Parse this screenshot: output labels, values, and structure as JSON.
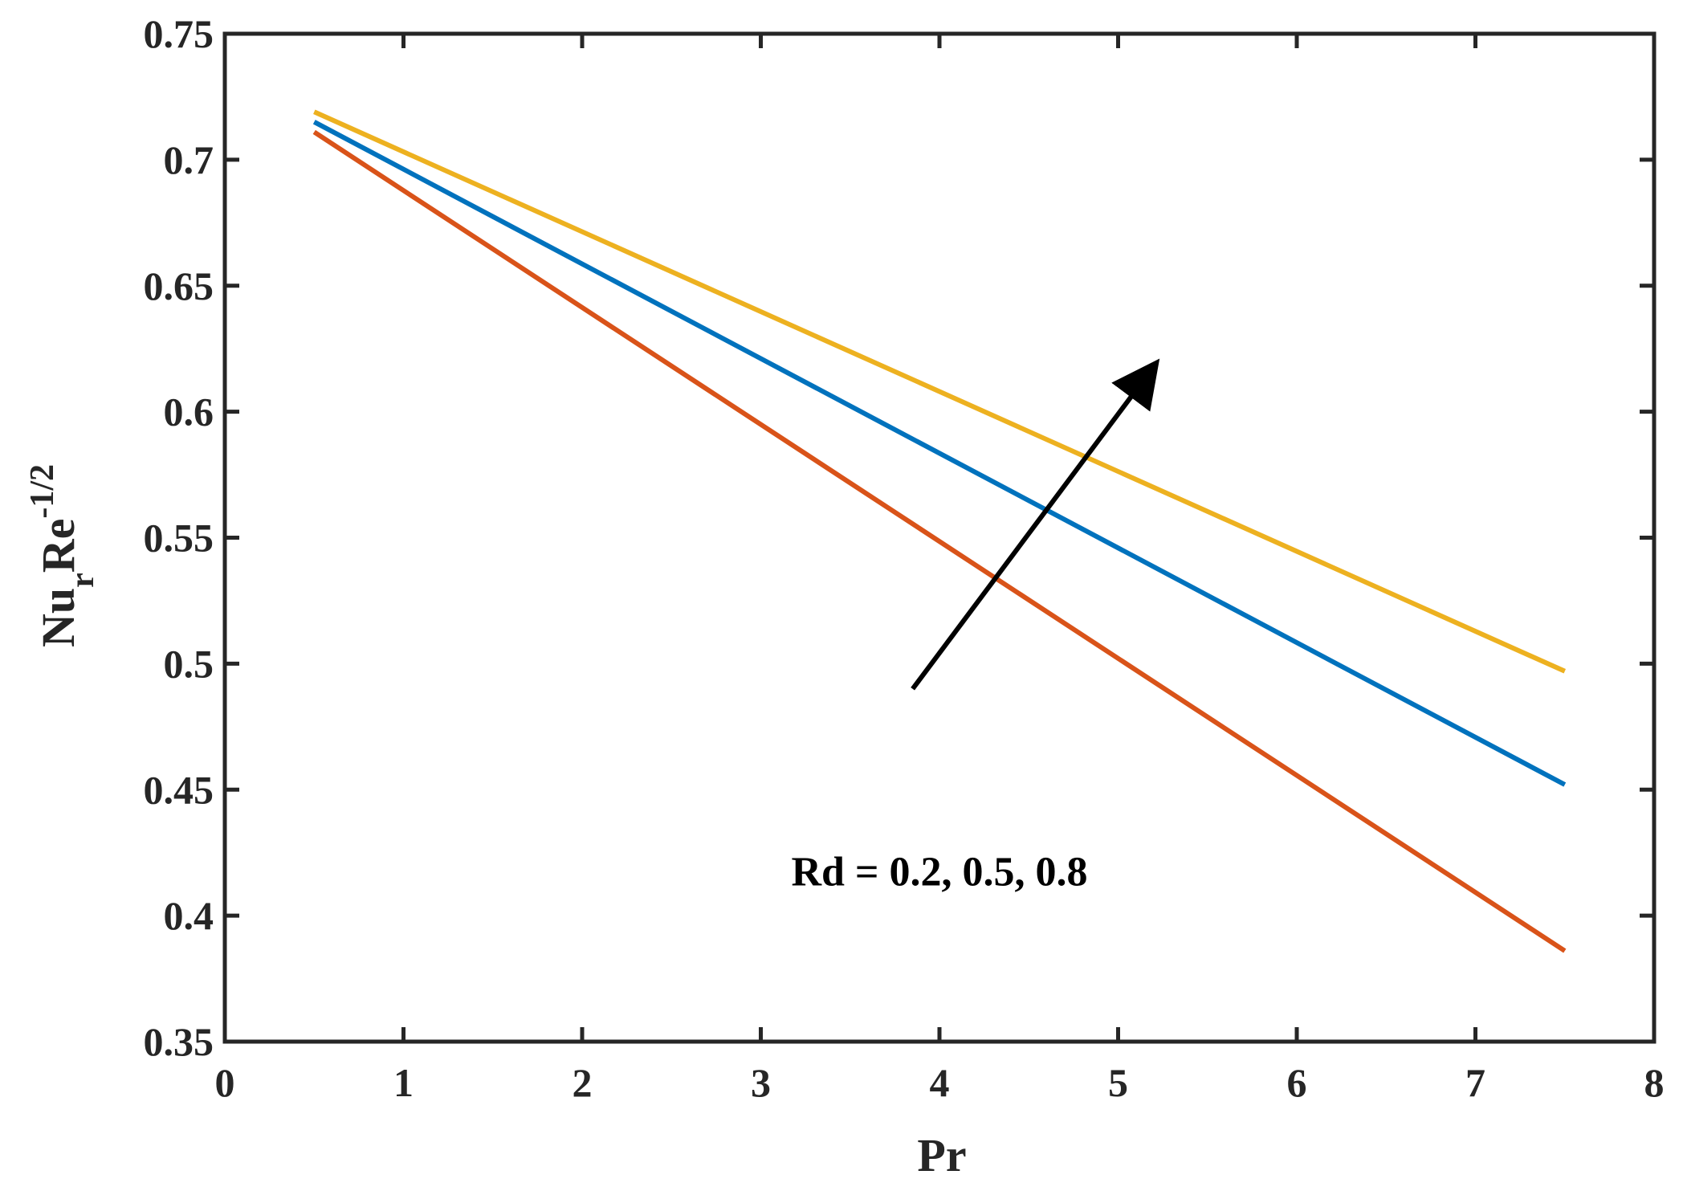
{
  "chart_data": {
    "type": "line",
    "xlabel": "Pr",
    "ylabel": {
      "main": "Nu",
      "sub": "r",
      "mid": "Re",
      "sup": "-1/2"
    },
    "xlim": [
      0,
      8
    ],
    "ylim": [
      0.35,
      0.75
    ],
    "x_ticks": [
      "0",
      "1",
      "2",
      "3",
      "4",
      "5",
      "6",
      "7",
      "8"
    ],
    "y_ticks": [
      "0.35",
      "0.4",
      "0.45",
      "0.5",
      "0.55",
      "0.6",
      "0.65",
      "0.7",
      "0.75"
    ],
    "grid": false,
    "series": [
      {
        "color": "#d95319",
        "x": [
          0.5,
          7.5
        ],
        "y": [
          0.711,
          0.386
        ]
      },
      {
        "color": "#0072bd",
        "x": [
          0.5,
          7.5
        ],
        "y": [
          0.715,
          0.452
        ]
      },
      {
        "color": "#edb120",
        "x": [
          0.5,
          7.5
        ],
        "y": [
          0.719,
          0.497
        ]
      }
    ],
    "annotation": {
      "text": "Rd = 0.2, 0.5, 0.8",
      "arrow_from": [
        3.85,
        0.49
      ],
      "arrow_to": [
        5.2,
        0.618
      ],
      "text_at": [
        4.0,
        0.412
      ]
    }
  }
}
